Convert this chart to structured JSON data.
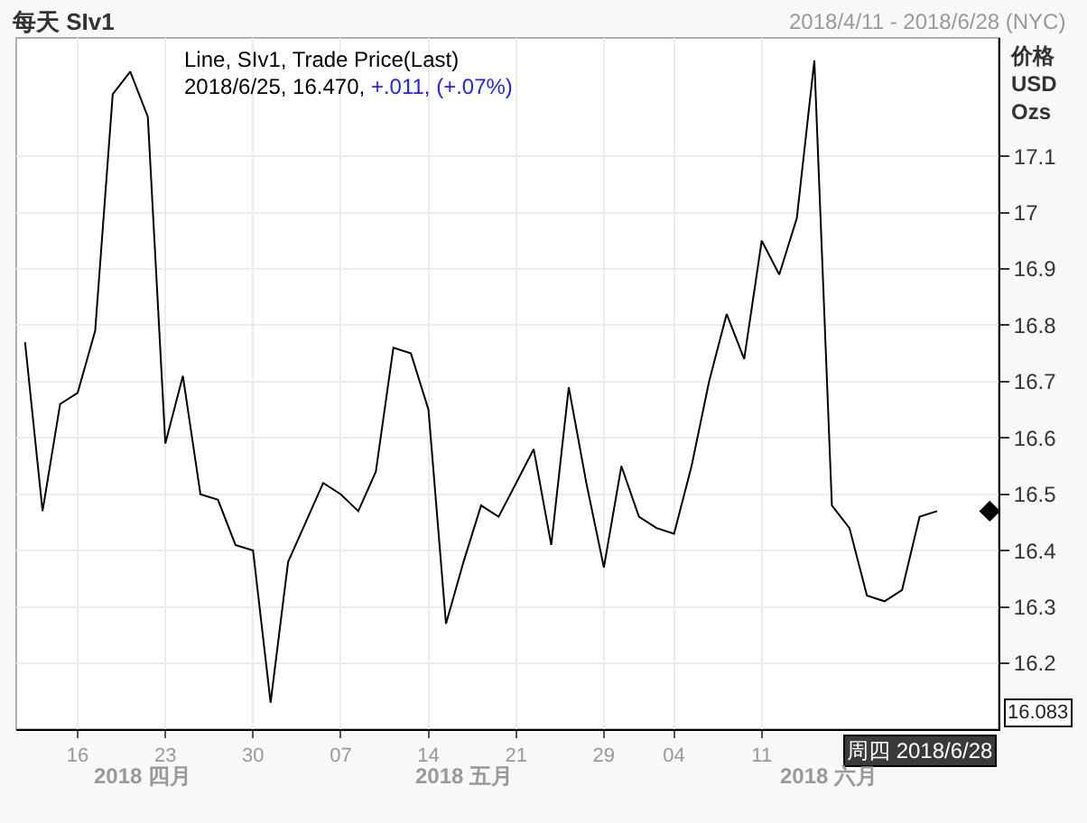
{
  "chart_data": {
    "type": "line",
    "title": "每天 SIv1",
    "subtitle": "2018/4/11 - 2018/6/28 (NYC)",
    "ylabel": "价格\nUSD\nOzs",
    "categories": [
      null,
      null,
      null,
      "16",
      null,
      null,
      null,
      null,
      "23",
      null,
      null,
      null,
      null,
      "30",
      null,
      null,
      null,
      null,
      "07",
      null,
      null,
      null,
      null,
      "14",
      null,
      null,
      null,
      null,
      "21",
      null,
      null,
      null,
      null,
      "29",
      null,
      null,
      null,
      "04",
      null,
      null,
      null,
      null,
      "11",
      null,
      null,
      null,
      null,
      null,
      null,
      null,
      null,
      null,
      null,
      null,
      null,
      null
    ],
    "series": [
      {
        "color": "#000000",
        "values": [
          16.77,
          16.47,
          16.66,
          16.68,
          16.79,
          17.21,
          17.25,
          17.17,
          16.59,
          16.71,
          16.5,
          16.49,
          16.41,
          16.4,
          16.13,
          16.38,
          16.45,
          16.52,
          16.5,
          16.47,
          16.54,
          16.76,
          16.75,
          16.65,
          16.27,
          16.38,
          16.48,
          16.46,
          16.52,
          16.58,
          16.41,
          16.69,
          16.52,
          16.37,
          16.55,
          16.46,
          16.44,
          16.43,
          16.55,
          16.7,
          16.82,
          16.74,
          16.95,
          16.89,
          16.99,
          17.27,
          16.48,
          16.44,
          16.32,
          16.31,
          16.33,
          16.46,
          16.47,
          null,
          null,
          null
        ]
      },
      {
        "type": "scatter",
        "marker": "diamond",
        "color": "#000000",
        "values": [
          null,
          null,
          null,
          null,
          null,
          null,
          null,
          null,
          null,
          null,
          null,
          null,
          null,
          null,
          null,
          null,
          null,
          null,
          null,
          null,
          null,
          null,
          null,
          null,
          null,
          null,
          null,
          null,
          null,
          null,
          null,
          null,
          null,
          null,
          null,
          null,
          null,
          null,
          null,
          null,
          null,
          null,
          null,
          null,
          null,
          null,
          null,
          null,
          null,
          null,
          null,
          null,
          null,
          null,
          null,
          16.47
        ]
      }
    ],
    "ylim": [
      16.083,
      17.31
    ],
    "yticks": [
      16.2,
      16.3,
      16.4,
      16.5,
      16.6,
      16.7,
      16.8,
      16.9,
      17,
      17.1
    ],
    "grid": true,
    "annotations": [
      "Line, SIv1, Trade Price(Last)",
      "2018/6/25, 16.470,",
      "+.011, (+.07%)",
      "16.083",
      "周四 2018/6/28",
      "2018 四月",
      "2018 五月",
      "2018 六月"
    ]
  }
}
